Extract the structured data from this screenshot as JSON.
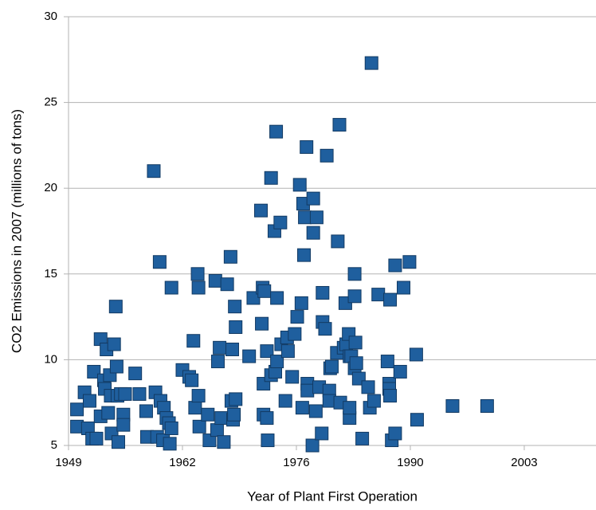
{
  "chart_data": {
    "type": "scatter",
    "x_label": "Year of Plant First Operation",
    "y_label": "CO2 Emissions in 2007 (millions of tons)",
    "color": "#1f5f9e",
    "xlim": [
      1949,
      2011.5
    ],
    "xticks": [
      1949,
      {
        "value": 1962.5,
        "label": "1962"
      },
      1976,
      {
        "value": 1989.5,
        "label": "1990"
      },
      2003
    ],
    "ylim": [
      5,
      30
    ],
    "yticks": [
      5,
      10,
      15,
      20,
      25,
      30
    ],
    "grid": true,
    "x": [
      1950.0,
      1950.0,
      1950.9,
      1951.5,
      1951.3,
      1952.0,
      1951.8,
      1952.3,
      1952.8,
      1952.8,
      1953.2,
      1953.3,
      1953.5,
      1953.7,
      1953.9,
      1954.0,
      1954.1,
      1954.4,
      1954.6,
      1954.7,
      1954.8,
      1954.9,
      1955.2,
      1955.5,
      1955.5,
      1955.7,
      1956.9,
      1957.4,
      1958.2,
      1958.3,
      1959.1,
      1959.3,
      1959.5,
      1959.8,
      1959.9,
      1960.2,
      1960.3,
      1960.6,
      1960.9,
      1961.0,
      1961.2,
      1961.2,
      1962.5,
      1963.3,
      1963.6,
      1963.8,
      1964.0,
      1964.3,
      1964.4,
      1964.4,
      1964.5,
      1965.5,
      1965.7,
      1966.4,
      1966.6,
      1966.7,
      1966.9,
      1967.1,
      1967.4,
      1967.8,
      1968.2,
      1968.3,
      1968.4,
      1968.5,
      1968.6,
      1968.7,
      1968.8,
      1968.8,
      1970.4,
      1970.9,
      1971.8,
      1971.9,
      1972.0,
      1972.1,
      1972.1,
      1972.2,
      1972.5,
      1972.6,
      1972.5,
      1973.0,
      1973.0,
      1973.4,
      1973.5,
      1973.6,
      1973.7,
      1973.7,
      1974.1,
      1974.2,
      1974.7,
      1974.9,
      1975.0,
      1975.5,
      1975.8,
      1976.1,
      1976.4,
      1976.6,
      1976.7,
      1976.8,
      1976.9,
      1977.0,
      1977.2,
      1977.3,
      1977.3,
      1977.9,
      1978.0,
      1978.0,
      1978.3,
      1978.4,
      1978.7,
      1979.0,
      1979.1,
      1979.1,
      1979.4,
      1979.6,
      1979.9,
      1979.9,
      1980.0,
      1980.2,
      1980.8,
      1980.9,
      1981.1,
      1981.2,
      1981.6,
      1981.8,
      1981.9,
      1982.2,
      1982.3,
      1982.3,
      1982.3,
      1982.5,
      1982.9,
      1982.9,
      1982.9,
      1983.0,
      1983.1,
      1983.4,
      1983.8,
      1984.5,
      1984.7,
      1984.9,
      1985.2,
      1985.7,
      1986.8,
      1987.0,
      1987.0,
      1987.1,
      1987.1,
      1987.3,
      1987.7,
      1987.7,
      1988.3,
      1988.7,
      1989.4,
      1990.2,
      1990.3,
      1994.5,
      1998.6
    ],
    "values": [
      7.1,
      6.1,
      8.1,
      7.6,
      6.0,
      9.3,
      5.4,
      5.4,
      11.2,
      6.7,
      8.8,
      8.3,
      10.6,
      6.9,
      9.1,
      7.9,
      5.7,
      10.9,
      13.1,
      9.6,
      7.9,
      5.2,
      8.0,
      6.8,
      6.2,
      8.0,
      9.2,
      8.0,
      7.0,
      5.5,
      21.0,
      8.1,
      5.5,
      15.7,
      7.6,
      5.3,
      7.2,
      6.6,
      6.3,
      5.1,
      6.0,
      14.2,
      9.4,
      9.0,
      8.8,
      11.1,
      7.2,
      15.0,
      14.2,
      7.9,
      6.1,
      6.8,
      5.3,
      14.6,
      5.9,
      9.9,
      10.7,
      6.6,
      5.2,
      14.4,
      16.0,
      7.6,
      10.6,
      6.5,
      6.8,
      13.1,
      7.7,
      11.9,
      10.2,
      13.6,
      18.7,
      12.1,
      14.2,
      8.6,
      6.8,
      14.0,
      6.6,
      5.3,
      10.5,
      20.6,
      9.1,
      17.5,
      9.3,
      23.3,
      13.6,
      9.9,
      18.0,
      10.9,
      7.6,
      11.3,
      10.5,
      9.0,
      11.5,
      12.5,
      20.2,
      13.3,
      7.2,
      19.1,
      16.1,
      18.3,
      22.4,
      8.6,
      8.2,
      5.0,
      19.4,
      17.4,
      7.0,
      18.3,
      8.4,
      5.7,
      13.9,
      12.2,
      11.8,
      21.9,
      8.2,
      7.6,
      9.5,
      9.6,
      10.4,
      16.9,
      23.7,
      7.5,
      10.7,
      13.3,
      10.9,
      11.5,
      10.2,
      6.6,
      7.2,
      10.2,
      9.5,
      13.7,
      15.0,
      11.0,
      9.8,
      8.9,
      5.4,
      8.4,
      7.2,
      27.3,
      7.6,
      13.8,
      9.9,
      8.6,
      8.3,
      13.5,
      7.9,
      5.3,
      5.7,
      15.5,
      9.3,
      14.2,
      15.7,
      10.3,
      6.5,
      7.3,
      7.3
    ]
  }
}
